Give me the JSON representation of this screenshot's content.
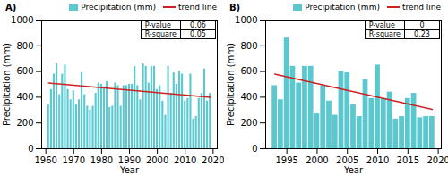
{
  "chart_data": [
    {
      "type": "bar",
      "title": "A)",
      "x": [
        1961,
        1962,
        1963,
        1964,
        1965,
        1966,
        1967,
        1968,
        1969,
        1970,
        1971,
        1972,
        1973,
        1974,
        1975,
        1976,
        1977,
        1978,
        1979,
        1980,
        1981,
        1982,
        1983,
        1984,
        1985,
        1986,
        1987,
        1988,
        1989,
        1990,
        1991,
        1992,
        1993,
        1994,
        1995,
        1996,
        1997,
        1998,
        1999,
        2000,
        2001,
        2002,
        2003,
        2004,
        2005,
        2006,
        2007,
        2008,
        2009,
        2010,
        2011,
        2012,
        2013,
        2014,
        2015,
        2016,
        2017,
        2018,
        2019
      ],
      "series": [
        {
          "name": "Precipitation (mm)",
          "type": "bar",
          "color": "#5BC8D0",
          "values": [
            340,
            460,
            580,
            660,
            420,
            580,
            650,
            460,
            380,
            450,
            340,
            380,
            590,
            420,
            330,
            300,
            330,
            430,
            510,
            500,
            480,
            520,
            320,
            330,
            510,
            490,
            330,
            490,
            490,
            500,
            500,
            640,
            490,
            380,
            660,
            640,
            510,
            640,
            640,
            460,
            490,
            370,
            260,
            640,
            430,
            590,
            500,
            600,
            580,
            370,
            390,
            580,
            230,
            250,
            390,
            430,
            620,
            370,
            430
          ]
        },
        {
          "name": "trend line",
          "type": "line",
          "color": "#cc2222",
          "x": [
            1961,
            2019
          ],
          "values": [
            510,
            400
          ]
        }
      ],
      "xlabel": "Year",
      "ylabel": "Precipitation (mm)",
      "xlim": [
        1958.5,
        2021.5
      ],
      "ylim": [
        0,
        1000
      ],
      "xticks": [
        1960,
        1970,
        1980,
        1990,
        2000,
        2010,
        2020
      ],
      "yticks": [
        0,
        200,
        400,
        600,
        800,
        1000
      ],
      "legend": "upper right",
      "annotations": [
        [
          "P-value",
          "0.06"
        ],
        [
          "R-square",
          "0.05"
        ]
      ]
    },
    {
      "type": "bar",
      "title": "B)",
      "x": [
        1993,
        1994,
        1995,
        1996,
        1997,
        1998,
        1999,
        2000,
        2001,
        2002,
        2003,
        2004,
        2005,
        2006,
        2007,
        2008,
        2009,
        2010,
        2011,
        2012,
        2013,
        2014,
        2015,
        2016,
        2017,
        2018,
        2019
      ],
      "series": [
        {
          "name": "Precipitation (mm)",
          "type": "bar",
          "color": "#5BC8D0",
          "values": [
            490,
            380,
            860,
            640,
            510,
            640,
            640,
            270,
            490,
            370,
            260,
            600,
            590,
            340,
            250,
            540,
            390,
            650,
            390,
            440,
            230,
            250,
            390,
            430,
            240,
            250,
            250
          ]
        },
        {
          "name": "trend line",
          "type": "line",
          "color": "#cc2222",
          "x": [
            1993,
            2019
          ],
          "values": [
            580,
            305
          ]
        }
      ],
      "xlabel": "Year",
      "ylabel": "Precipitation (mm)",
      "xlim": [
        1991.5,
        2020.5
      ],
      "ylim": [
        0,
        1000
      ],
      "xticks": [
        1995,
        2000,
        2005,
        2010,
        2015,
        2020
      ],
      "yticks": [
        0,
        200,
        400,
        600,
        800,
        1000
      ],
      "legend": "upper right",
      "annotations": [
        [
          "P-value",
          "0"
        ],
        [
          "R-square",
          "0.23"
        ]
      ]
    }
  ]
}
